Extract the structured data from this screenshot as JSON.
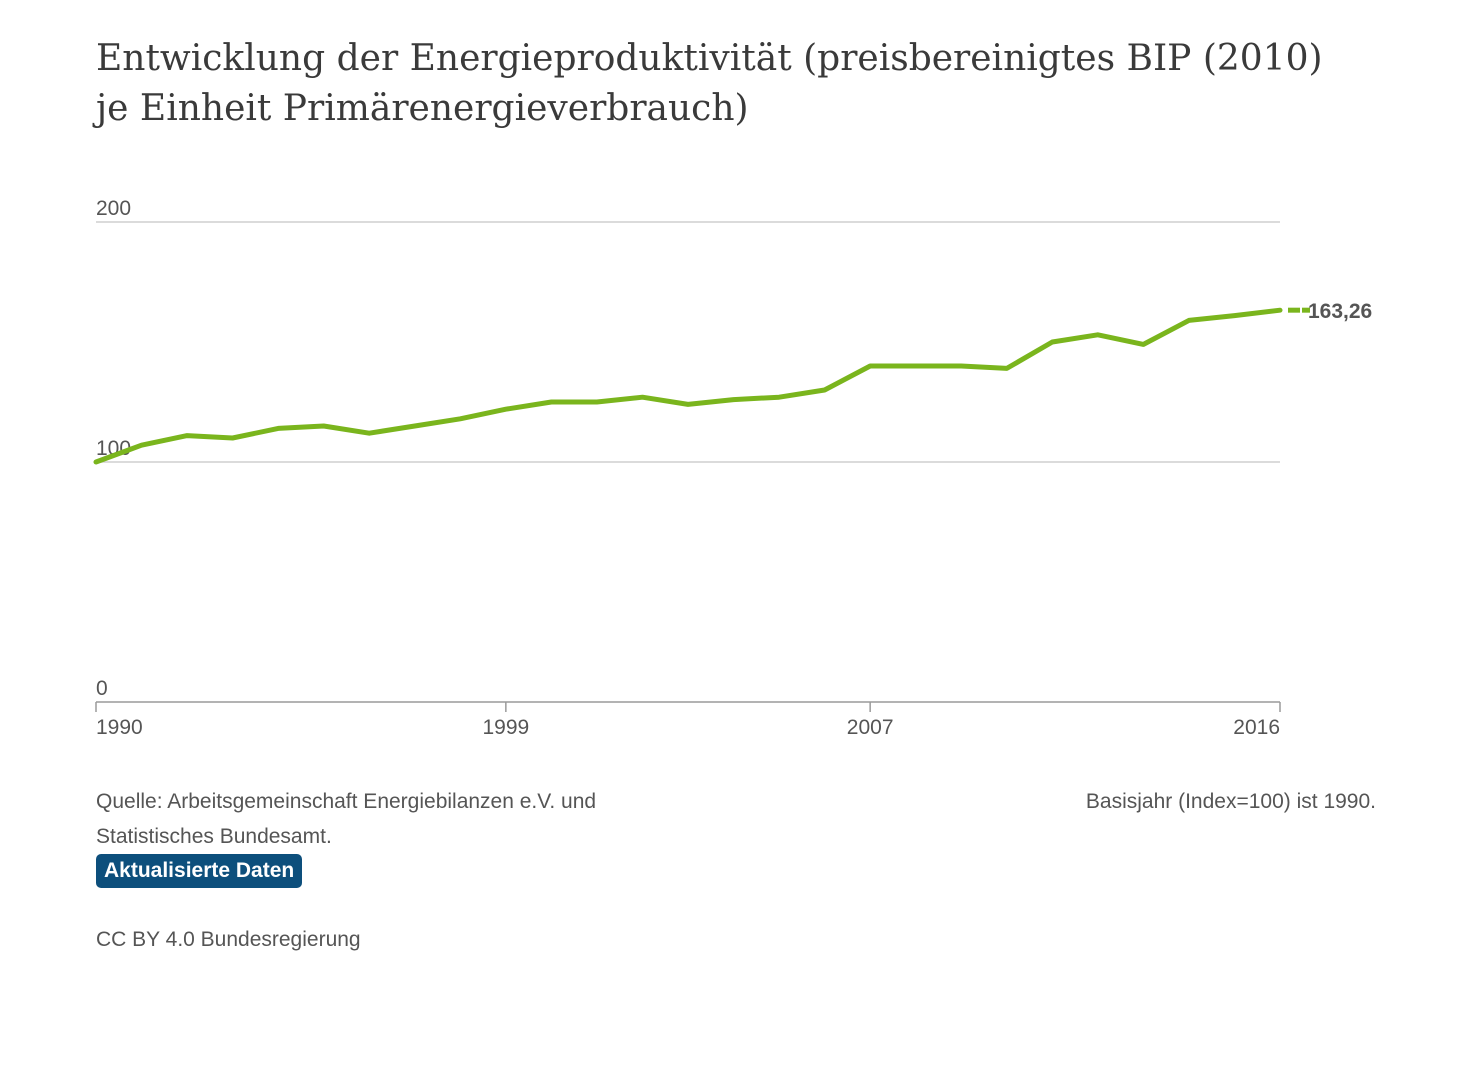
{
  "chart_data": {
    "type": "line",
    "title": "Entwicklung der Energieproduktivität (preisbereinigtes BIP (2010) je Einheit Primärenergieverbrauch)",
    "xlabel": "",
    "ylabel": "",
    "ylim": [
      0,
      200
    ],
    "yticks": [
      "0",
      "100",
      "200"
    ],
    "xticks": [
      1990,
      1999,
      2007,
      2016
    ],
    "grid": true,
    "line_color": "#7ab51d",
    "x": [
      1990,
      1991,
      1992,
      1993,
      1994,
      1995,
      1996,
      1997,
      1998,
      1999,
      2000,
      2001,
      2002,
      2003,
      2004,
      2005,
      2006,
      2007,
      2008,
      2009,
      2010,
      2011,
      2012,
      2013,
      2014,
      2015,
      2016
    ],
    "series": [
      {
        "values": [
          100,
          107,
          111,
          110,
          114,
          115,
          112,
          115,
          118,
          122,
          125,
          125,
          127,
          124,
          126,
          127,
          130,
          140,
          140,
          140,
          139,
          150,
          153,
          149,
          159,
          161,
          163.26
        ]
      }
    ],
    "end_label": "163,26"
  },
  "footer": {
    "source": "Quelle: Arbeitsgemeinschaft Energiebilanzen e.V. und Statistisches Bundesamt.",
    "note": "Basisjahr (Index=100) ist 1990.",
    "button_label": "Aktualisierte Daten",
    "license": "CC BY 4.0 Bundesregierung"
  }
}
